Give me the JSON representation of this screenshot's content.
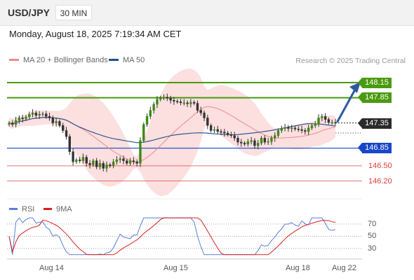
{
  "header": {
    "symbol": "USD/JPY",
    "timeframe": "30 MIN"
  },
  "timestamp": "Monday, August 18, 2025 7:19:34 AM CET",
  "legend": {
    "ma20": "MA 20 + Bollinger Bands",
    "ma50": "MA 50",
    "ma20_color": "#f08a8a",
    "ma50_color": "#1f4e8c",
    "credit": "Research © 2025 Trading Central"
  },
  "price_levels": {
    "r2": "148.15",
    "r1": "147.85",
    "current": "147.35",
    "s1": "146.85",
    "s2": "146.50",
    "s3": "146.20",
    "resistance_color": "#4a9a0e",
    "support_color": "#1846c8",
    "weak_support_color": "#e03a3a",
    "current_color": "#2a2a2a"
  },
  "rsi_legend": {
    "rsi": "RSI",
    "ma": "9MA",
    "rsi_color": "#5b7fd6",
    "ma_color": "#d62020"
  },
  "rsi_levels": [
    "70",
    "50",
    "30"
  ],
  "dates": [
    "Aug 14",
    "Aug 15",
    "Aug 18",
    "Aug 22"
  ],
  "chart_data": {
    "type": "candlestick",
    "symbol": "USD/JPY",
    "interval": "30 MIN",
    "ylim": [
      146.05,
      148.3
    ],
    "close": [
      147.35,
      147.32,
      147.4,
      147.45,
      147.43,
      147.47,
      147.52,
      147.55,
      147.5,
      147.52,
      147.53,
      147.48,
      147.45,
      147.35,
      147.38,
      147.3,
      147.2,
      147.08,
      146.78,
      146.58,
      146.62,
      146.6,
      146.67,
      146.55,
      146.52,
      146.6,
      146.48,
      146.55,
      146.45,
      146.52,
      146.5,
      146.58,
      146.62,
      146.64,
      146.6,
      146.55,
      146.6,
      146.58,
      146.55,
      147.0,
      147.32,
      147.48,
      147.6,
      147.72,
      147.82,
      147.85,
      147.86,
      147.84,
      147.8,
      147.78,
      147.77,
      147.75,
      147.75,
      147.73,
      147.76,
      147.74,
      147.6,
      147.55,
      147.45,
      147.3,
      147.2,
      147.22,
      147.18,
      147.17,
      147.15,
      147.12,
      147.1,
      147.05,
      146.97,
      146.95,
      146.93,
      146.98,
      147.0,
      146.9,
      146.95,
      147.05,
      146.97,
      146.98,
      147.05,
      147.1,
      147.2,
      147.24,
      147.26,
      147.24,
      147.25,
      147.23,
      147.22,
      147.2,
      147.18,
      147.25,
      147.3,
      147.33,
      147.45,
      147.48,
      147.42,
      147.36,
      147.36,
      147.35
    ]
  }
}
